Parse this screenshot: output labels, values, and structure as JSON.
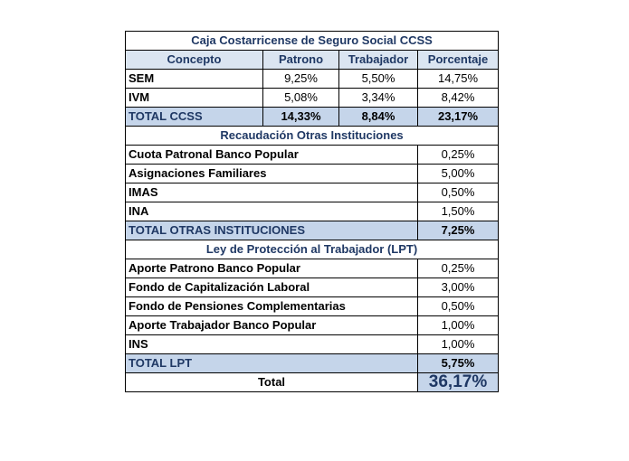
{
  "title": "Caja Costarricense de Seguro Social CCSS",
  "headers": [
    "Concepto",
    "Patrono",
    "Trabajador",
    "Porcentaje"
  ],
  "ccss_rows": [
    {
      "concepto": "SEM",
      "patrono": "9,25%",
      "trabajador": "5,50%",
      "porcentaje": "14,75%"
    },
    {
      "concepto": "IVM",
      "patrono": "5,08%",
      "trabajador": "3,34%",
      "porcentaje": "8,42%"
    }
  ],
  "ccss_total": {
    "concepto": "TOTAL CCSS",
    "patrono": "14,33%",
    "trabajador": "8,84%",
    "porcentaje": "23,17%"
  },
  "otras_title": "Recaudación Otras Instituciones",
  "otras_rows": [
    {
      "concepto": "Cuota Patronal Banco Popular",
      "porcentaje": "0,25%"
    },
    {
      "concepto": "Asignaciones Familiares",
      "porcentaje": "5,00%"
    },
    {
      "concepto": "IMAS",
      "porcentaje": "0,50%"
    },
    {
      "concepto": "INA",
      "porcentaje": "1,50%"
    }
  ],
  "otras_total": {
    "concepto": "TOTAL OTRAS INSTITUCIONES",
    "porcentaje": "7,25%"
  },
  "lpt_title": "Ley de Protección al Trabajador (LPT)",
  "lpt_rows": [
    {
      "concepto": "Aporte Patrono Banco Popular",
      "porcentaje": "0,25%"
    },
    {
      "concepto": "Fondo de Capitalización Laboral",
      "porcentaje": "3,00%"
    },
    {
      "concepto": "Fondo de Pensiones Complementarias",
      "porcentaje": "0,50%"
    },
    {
      "concepto": "Aporte Trabajador Banco Popular",
      "porcentaje": "1,00%"
    },
    {
      "concepto": "INS",
      "porcentaje": "1,00%"
    }
  ],
  "lpt_total": {
    "concepto": "TOTAL LPT",
    "porcentaje": "5,75%"
  },
  "grand_total": {
    "label": "Total",
    "value": "36,17%"
  },
  "colors": {
    "header_text": "#1f3864",
    "total_fill": "#c5d5ea",
    "header_fill": "#dbe5f1"
  }
}
